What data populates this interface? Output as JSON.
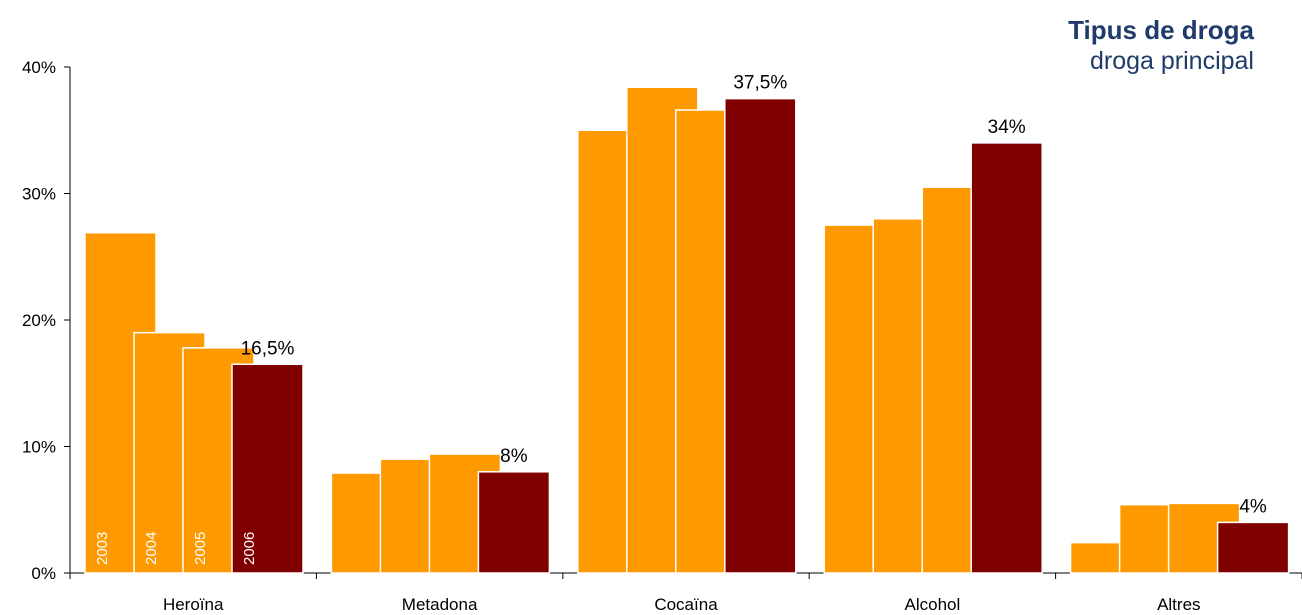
{
  "chart_data": {
    "type": "bar",
    "title": "Tipus de droga",
    "subtitle": "droga principal",
    "categories": [
      "Heroïna",
      "Metadona",
      "Cocaïna",
      "Alcohol",
      "Altres"
    ],
    "series": [
      {
        "name": "2003",
        "color": "#ff9900",
        "values": [
          26.9,
          7.9,
          35.0,
          27.5,
          2.4
        ]
      },
      {
        "name": "2004",
        "color": "#ff9900",
        "values": [
          19.0,
          9.0,
          38.4,
          28.0,
          5.4
        ]
      },
      {
        "name": "2005",
        "color": "#ff9900",
        "values": [
          17.8,
          9.4,
          36.6,
          30.5,
          5.5
        ]
      },
      {
        "name": "2006",
        "color": "#800000",
        "values": [
          16.5,
          8.0,
          37.5,
          34.0,
          4.0
        ]
      }
    ],
    "data_labels": [
      "16,5%",
      "8%",
      "37,5%",
      "34%",
      "4%"
    ],
    "ylim": [
      0,
      40
    ],
    "yticks": [
      "0%",
      "10%",
      "20%",
      "30%",
      "40%"
    ],
    "ytick_values": [
      0,
      10,
      20,
      30,
      40
    ],
    "grid": false,
    "legend": "none"
  }
}
